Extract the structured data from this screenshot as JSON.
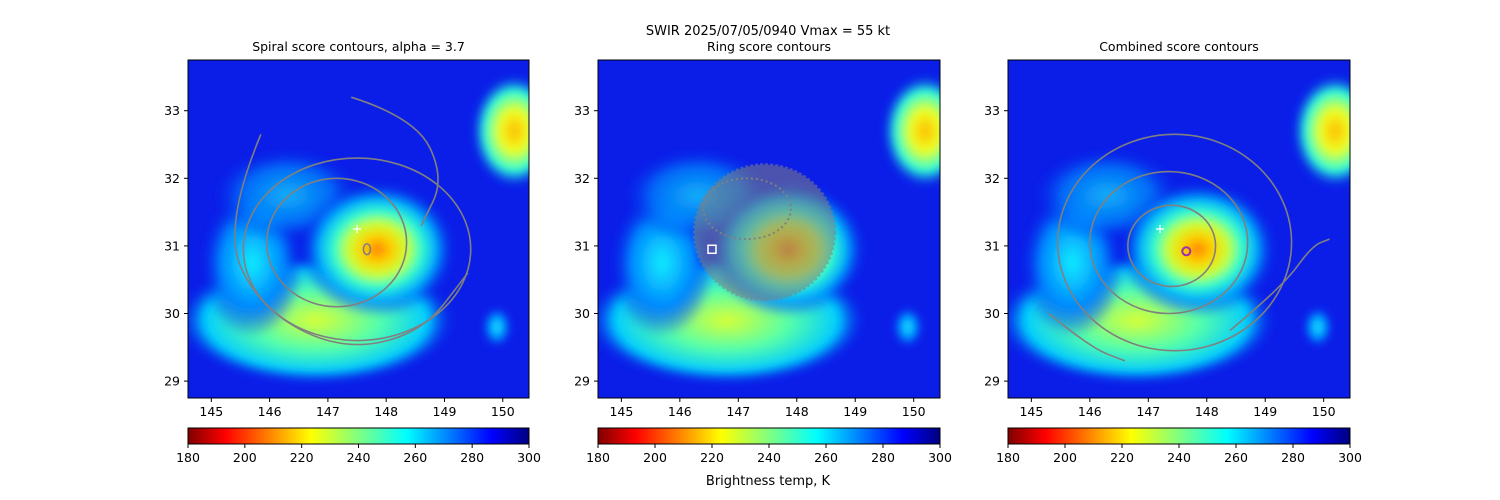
{
  "suptitle_line1": "SWIR  2025/07/05/0940    Vmax = 55 kt",
  "colorbar_label": "Brightness temp, K",
  "colormap": "jet_reversed",
  "colors": {
    "contour": "#808080",
    "marker_plus": "#ffffff",
    "ring_center_marker": "#ffffff",
    "combined_center_marker": "#9b2fae"
  },
  "chart_data": [
    {
      "type": "heatmap",
      "title": "Spiral score contours, alpha =  3.7",
      "xlim": [
        144.6,
        150.45
      ],
      "ylim": [
        28.75,
        33.75
      ],
      "xticks": [
        "145",
        "146",
        "147",
        "148",
        "149",
        "150"
      ],
      "yticks": [
        "29",
        "30",
        "31",
        "32",
        "33"
      ],
      "colorbar": {
        "range": [
          180,
          300
        ],
        "ticks": [
          "180",
          "200",
          "220",
          "240",
          "260",
          "280",
          "300"
        ]
      },
      "storm_center": {
        "lon": 147.9,
        "lat": 30.85
      },
      "first_guess_marker": {
        "lon": 147.5,
        "lat": 31.25,
        "symbol": "+"
      },
      "contours": [
        {
          "kind": "ellipse",
          "cx": 147.15,
          "cy": 31.05,
          "rx": 1.2,
          "ry": 0.95
        },
        {
          "kind": "ellipse",
          "cx": 147.5,
          "cy": 30.95,
          "rx": 1.95,
          "ry": 1.35
        },
        {
          "kind": "spiral_arm",
          "points": [
            [
              145.85,
              32.65
            ],
            [
              145.2,
              31.3
            ],
            [
              145.8,
              30.1
            ],
            [
              147.2,
              29.45
            ],
            [
              148.6,
              29.7
            ],
            [
              149.4,
              30.6
            ]
          ]
        },
        {
          "kind": "spiral_arm",
          "points": [
            [
              147.4,
              33.2
            ],
            [
              148.5,
              32.9
            ],
            [
              149.0,
              32.0
            ],
            [
              148.6,
              31.3
            ]
          ]
        },
        {
          "kind": "ellipse",
          "cx": 147.67,
          "cy": 30.95,
          "rx": 0.06,
          "ry": 0.08
        }
      ]
    },
    {
      "type": "heatmap",
      "title": "Ring score contours",
      "xlim": [
        144.6,
        150.45
      ],
      "ylim": [
        28.75,
        33.75
      ],
      "xticks": [
        "145",
        "146",
        "147",
        "148",
        "149",
        "150"
      ],
      "yticks": [
        "29",
        "30",
        "31",
        "32",
        "33"
      ],
      "colorbar": {
        "range": [
          180,
          300
        ],
        "ticks": [
          "180",
          "200",
          "220",
          "240",
          "260",
          "280",
          "300"
        ]
      },
      "storm_center": {
        "lon": 147.9,
        "lat": 30.85
      },
      "ring_region": {
        "lon": 147.45,
        "lat": 31.2,
        "rlon": 1.2,
        "rlat": 1.0
      },
      "center_marker": {
        "lon": 146.55,
        "lat": 30.95,
        "symbol": "square"
      }
    },
    {
      "type": "heatmap",
      "title": "Combined score contours",
      "xlim": [
        144.6,
        150.45
      ],
      "ylim": [
        28.75,
        33.75
      ],
      "xticks": [
        "145",
        "146",
        "147",
        "148",
        "149",
        "150"
      ],
      "yticks": [
        "29",
        "30",
        "31",
        "32",
        "33"
      ],
      "colorbar": {
        "range": [
          180,
          300
        ],
        "ticks": [
          "180",
          "200",
          "220",
          "240",
          "260",
          "280",
          "300"
        ]
      },
      "storm_center": {
        "lon": 147.9,
        "lat": 30.85
      },
      "first_guess_marker": {
        "lon": 147.2,
        "lat": 31.25,
        "symbol": "+"
      },
      "center_marker": {
        "lon": 147.65,
        "lat": 30.92,
        "symbol": "circle"
      },
      "contours": [
        {
          "kind": "ellipse",
          "cx": 147.4,
          "cy": 31.0,
          "rx": 0.75,
          "ry": 0.6
        },
        {
          "kind": "ellipse",
          "cx": 147.35,
          "cy": 31.05,
          "rx": 1.35,
          "ry": 1.05
        },
        {
          "kind": "ellipse",
          "cx": 147.45,
          "cy": 31.05,
          "rx": 2.0,
          "ry": 1.6
        },
        {
          "kind": "spiral_arm",
          "points": [
            [
              145.3,
              30.0
            ],
            [
              146.0,
              29.5
            ],
            [
              146.6,
              29.3
            ]
          ]
        },
        {
          "kind": "spiral_arm",
          "points": [
            [
              148.4,
              29.75
            ],
            [
              149.3,
              30.4
            ],
            [
              149.8,
              31.0
            ],
            [
              150.1,
              31.1
            ]
          ]
        }
      ]
    }
  ]
}
